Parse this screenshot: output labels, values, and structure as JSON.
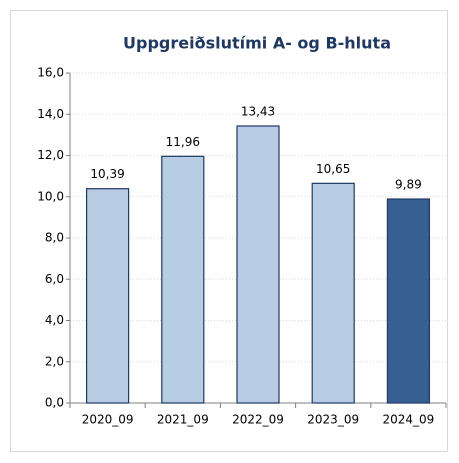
{
  "chart_data": {
    "type": "bar",
    "title": "Uppgreiðslutími A- og B-hluta",
    "categories": [
      "2020_09",
      "2021_09",
      "2022_09",
      "2023_09",
      "2024_09"
    ],
    "values": [
      10.39,
      11.96,
      13.43,
      10.65,
      9.89
    ],
    "value_labels": [
      "10,39",
      "11,96",
      "13,43",
      "10,65",
      "9,89"
    ],
    "colors": [
      "#b8cce4",
      "#b8cce4",
      "#b8cce4",
      "#b8cce4",
      "#366092"
    ],
    "ylim": [
      0,
      16
    ],
    "yticks": [
      {
        "value": 0,
        "label": "0,0"
      },
      {
        "value": 2,
        "label": "2,0"
      },
      {
        "value": 4,
        "label": "4,0"
      },
      {
        "value": 6,
        "label": "6,0"
      },
      {
        "value": 8,
        "label": "8,0"
      },
      {
        "value": 10,
        "label": "10,0"
      },
      {
        "value": 12,
        "label": "12,0"
      },
      {
        "value": 14,
        "label": "14,0"
      },
      {
        "value": 16,
        "label": "16,0"
      }
    ],
    "grid": true
  }
}
